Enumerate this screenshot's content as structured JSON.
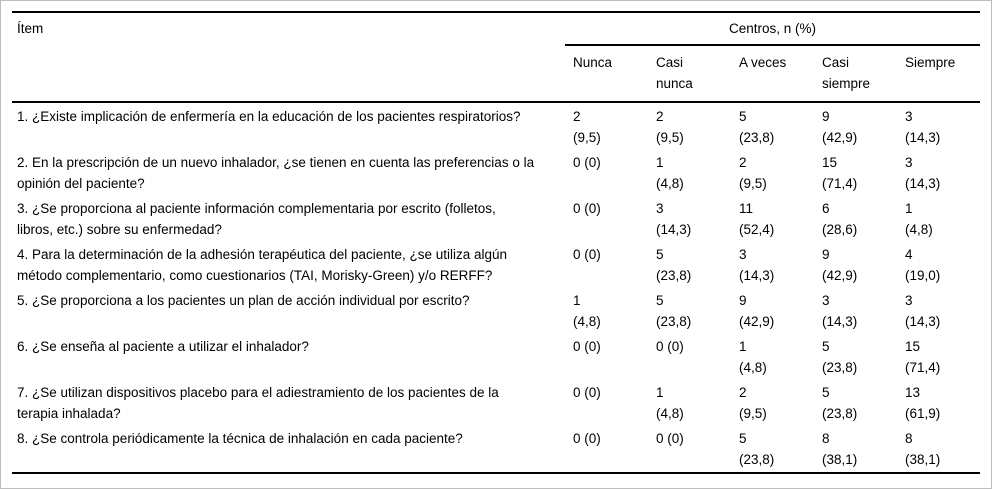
{
  "colors": {
    "rule": "#000000",
    "text": "#000000",
    "page_border": "#bdbdbd",
    "background": "#ffffff"
  },
  "table": {
    "item_header": "Ítem",
    "group_header": "Centros, n (%)",
    "columns": [
      {
        "label": "Nunca"
      },
      {
        "label": "Casi nunca"
      },
      {
        "label": "A veces"
      },
      {
        "label": "Casi siempre"
      },
      {
        "label": "Siempre"
      }
    ],
    "rows": [
      {
        "item": "1. ¿Existe implicación de enfermería en la educación de los pacientes respiratorios?",
        "cells": [
          {
            "l1": "2",
            "l2": "(9,5)"
          },
          {
            "l1": "2",
            "l2": "(9,5)"
          },
          {
            "l1": "5",
            "l2": "(23,8)"
          },
          {
            "l1": "9",
            "l2": "(42,9)"
          },
          {
            "l1": "3",
            "l2": "(14,3)"
          }
        ]
      },
      {
        "item": "2. En la prescripción de un nuevo inhalador, ¿se tienen en cuenta las preferencias o la opinión del paciente?",
        "cells": [
          {
            "l1": "0 (0)"
          },
          {
            "l1": "1",
            "l2": "(4,8)"
          },
          {
            "l1": "2",
            "l2": "(9,5)"
          },
          {
            "l1": "15",
            "l2": "(71,4)"
          },
          {
            "l1": "3",
            "l2": "(14,3)"
          }
        ]
      },
      {
        "item": "3. ¿Se proporciona al paciente información complementaria por escrito (folletos, libros, etc.) sobre su enfermedad?",
        "cells": [
          {
            "l1": "0 (0)"
          },
          {
            "l1": "3",
            "l2": "(14,3)"
          },
          {
            "l1": "11",
            "l2": "(52,4)"
          },
          {
            "l1": "6",
            "l2": "(28,6)"
          },
          {
            "l1": "1",
            "l2": "(4,8)"
          }
        ]
      },
      {
        "item": "4. Para la determinación de la adhesión terapéutica del paciente, ¿se utiliza algún método complementario, como cuestionarios (TAI, Morisky-Green) y/o RERFF?",
        "cells": [
          {
            "l1": "0 (0)"
          },
          {
            "l1": "5",
            "l2": "(23,8)"
          },
          {
            "l1": "3",
            "l2": "(14,3)"
          },
          {
            "l1": "9",
            "l2": "(42,9)"
          },
          {
            "l1": "4",
            "l2": "(19,0)"
          }
        ]
      },
      {
        "item": "5. ¿Se proporciona a los pacientes un plan de acción individual por escrito?",
        "cells": [
          {
            "l1": "1",
            "l2": "(4,8)"
          },
          {
            "l1": "5",
            "l2": "(23,8)"
          },
          {
            "l1": "9",
            "l2": "(42,9)"
          },
          {
            "l1": "3",
            "l2": "(14,3)"
          },
          {
            "l1": "3",
            "l2": "(14,3)"
          }
        ]
      },
      {
        "item": "6. ¿Se enseña al paciente a utilizar el inhalador?",
        "cells": [
          {
            "l1": "0 (0)"
          },
          {
            "l1": "0 (0)"
          },
          {
            "l1": "1",
            "l2": "(4,8)"
          },
          {
            "l1": "5",
            "l2": "(23,8)"
          },
          {
            "l1": "15",
            "l2": "(71,4)"
          }
        ]
      },
      {
        "item": "7. ¿Se utilizan dispositivos placebo para el adiestramiento de los pacientes de la terapia inhalada?",
        "cells": [
          {
            "l1": "0 (0)"
          },
          {
            "l1": "1",
            "l2": "(4,8)"
          },
          {
            "l1": "2",
            "l2": "(9,5)"
          },
          {
            "l1": "5",
            "l2": "(23,8)"
          },
          {
            "l1": "13",
            "l2": "(61,9)"
          }
        ]
      },
      {
        "item": "8. ¿Se controla periódicamente la técnica de inhalación en cada paciente?",
        "cells": [
          {
            "l1": "0 (0)"
          },
          {
            "l1": "0 (0)"
          },
          {
            "l1": "5",
            "l2": "(23,8)"
          },
          {
            "l1": "8",
            "l2": "(38,1)"
          },
          {
            "l1": "8",
            "l2": "(38,1)"
          }
        ]
      }
    ]
  }
}
